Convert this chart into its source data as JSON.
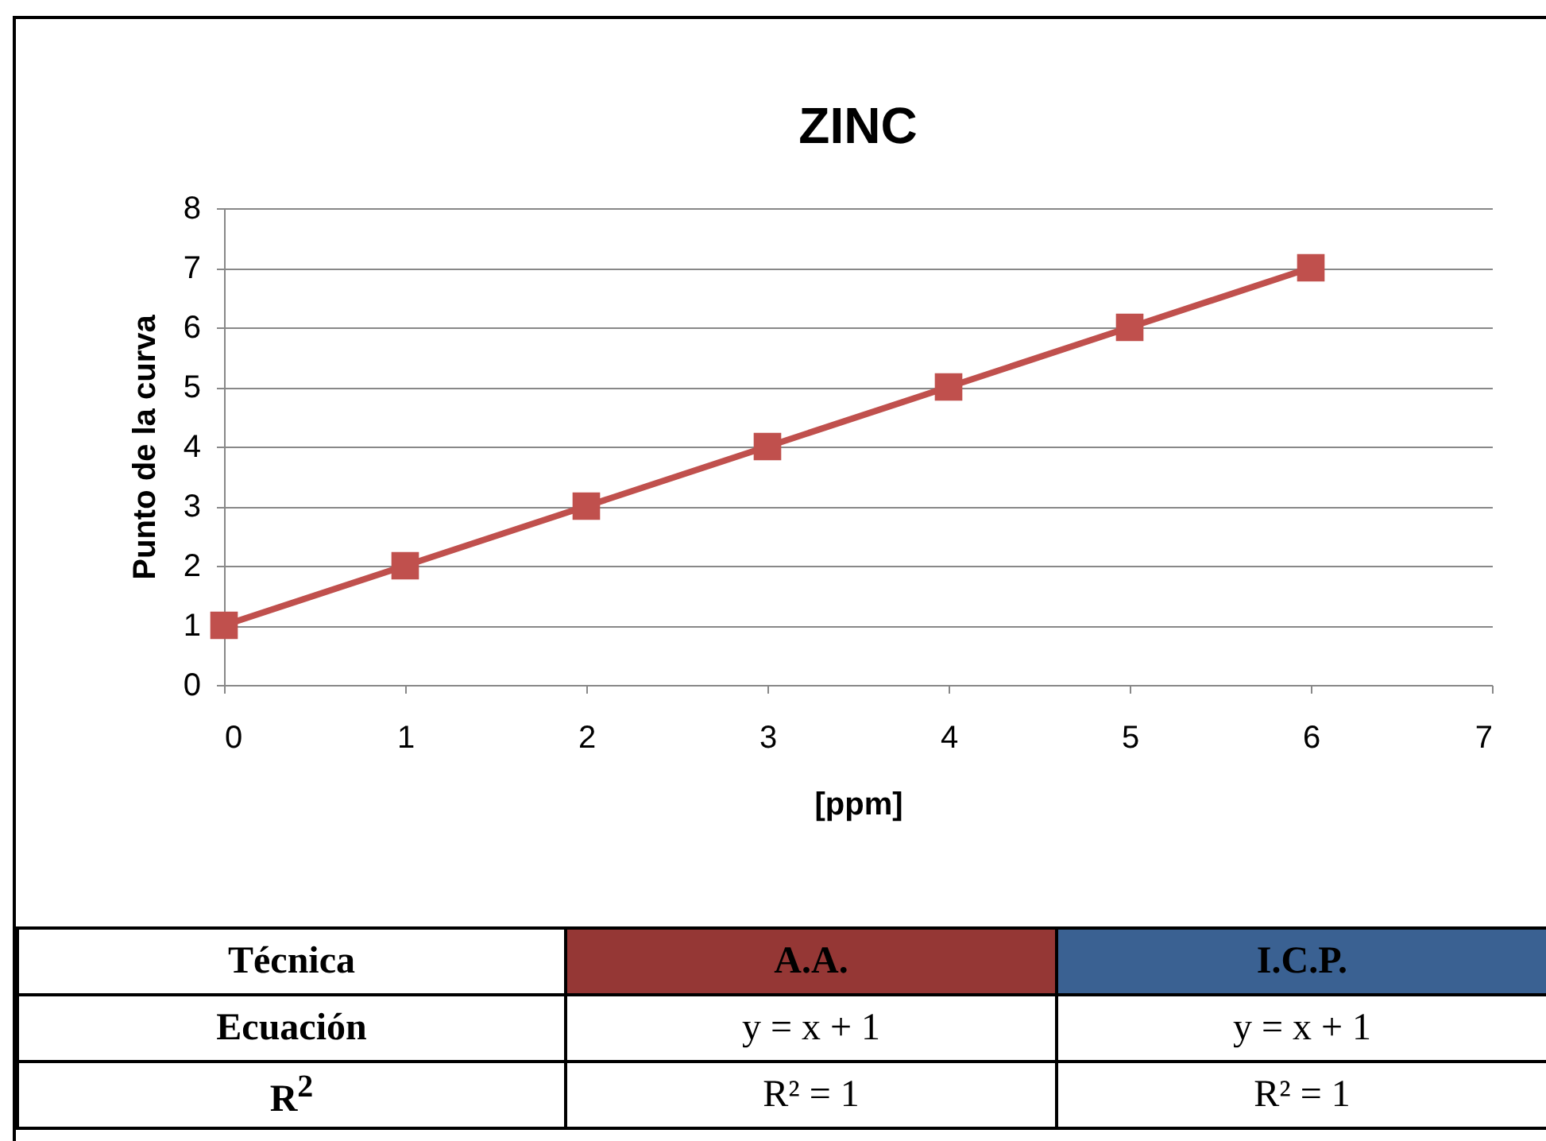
{
  "chart_data": {
    "type": "line",
    "title": "ZINC",
    "xlabel": "[ppm]",
    "ylabel": "Punto de la curva",
    "x": [
      0,
      1,
      2,
      3,
      4,
      5,
      6
    ],
    "series": [
      {
        "color": "#c0504d",
        "values": [
          1,
          2,
          3,
          4,
          5,
          6,
          7
        ]
      }
    ],
    "xlim": [
      0,
      7
    ],
    "xticks": [
      0,
      1,
      2,
      3,
      4,
      5,
      6,
      7
    ],
    "ylim": [
      0,
      8
    ],
    "yticks": [
      0,
      1,
      2,
      3,
      4,
      5,
      6,
      7,
      8
    ],
    "grid": "y",
    "marker": "square",
    "line_style": "solid",
    "annotations": [
      "Técnica",
      "A.A.",
      "I.C.P.",
      "Ecuación",
      "y = x + 1",
      "y = x + 1",
      "R$^{2}$",
      "R² = 1",
      "R² = 1"
    ]
  }
}
